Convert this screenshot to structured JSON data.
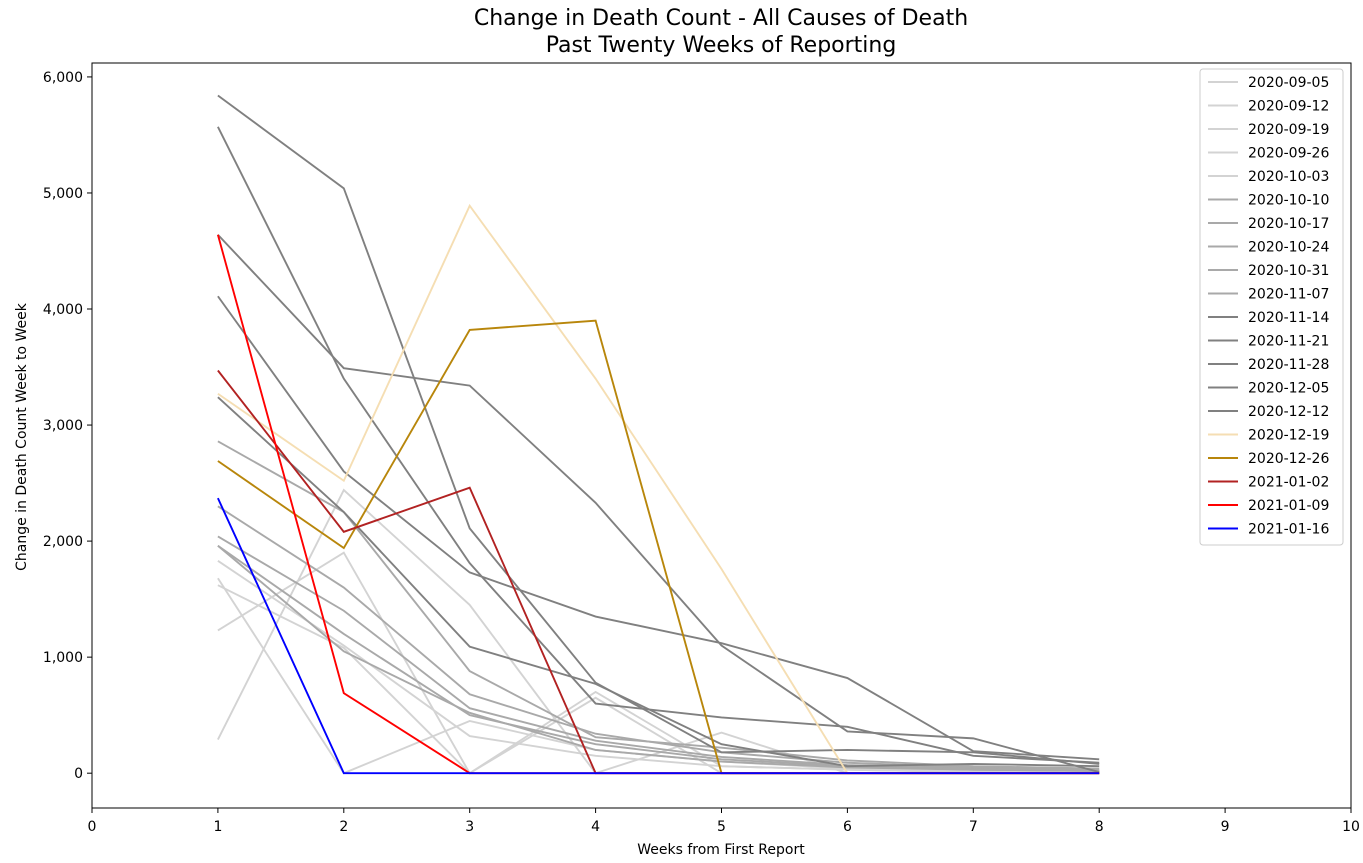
{
  "chart_data": {
    "type": "line",
    "title": "Change in Death Count - All Causes of Death",
    "subtitle": "Past Twenty Weeks of Reporting",
    "xlabel": "Weeks from First Report",
    "ylabel": "Change in Death Count Week to Week",
    "xlim": [
      0,
      10
    ],
    "ylim": [
      -300,
      6120
    ],
    "xticks": [
      0,
      1,
      2,
      3,
      4,
      5,
      6,
      7,
      8,
      9,
      10
    ],
    "yticks": [
      0,
      1000,
      2000,
      3000,
      4000,
      5000,
      6000
    ],
    "ytick_labels": [
      "0",
      "1,000",
      "2,000",
      "3,000",
      "4,000",
      "5,000",
      "6,000"
    ],
    "grid": false,
    "legend_position": "top-right",
    "x": [
      1,
      2,
      3,
      4,
      5,
      6,
      7,
      8
    ],
    "series": [
      {
        "name": "2020-09-05",
        "color": "#d3d3d3",
        "values": [
          290,
          2440,
          1450,
          0,
          350,
          0,
          0,
          0
        ]
      },
      {
        "name": "2020-09-12",
        "color": "#d3d3d3",
        "values": [
          1620,
          1080,
          0,
          650,
          0,
          0,
          0,
          0
        ]
      },
      {
        "name": "2020-09-19",
        "color": "#d3d3d3",
        "values": [
          1830,
          1100,
          320,
          150,
          60,
          30,
          10,
          0
        ]
      },
      {
        "name": "2020-09-26",
        "color": "#d3d3d3",
        "values": [
          1680,
          0,
          450,
          200,
          100,
          40,
          20,
          10
        ]
      },
      {
        "name": "2020-10-03",
        "color": "#d3d3d3",
        "values": [
          1230,
          1900,
          0,
          700,
          60,
          30,
          10,
          0
        ]
      },
      {
        "name": "2020-10-10",
        "color": "#a9a9a9",
        "values": [
          1960,
          1200,
          500,
          250,
          120,
          60,
          30,
          20
        ]
      },
      {
        "name": "2020-10-17",
        "color": "#a9a9a9",
        "values": [
          2040,
          1400,
          560,
          280,
          140,
          70,
          40,
          20
        ]
      },
      {
        "name": "2020-10-24",
        "color": "#a9a9a9",
        "values": [
          2300,
          1600,
          680,
          340,
          180,
          90,
          50,
          30
        ]
      },
      {
        "name": "2020-10-31",
        "color": "#a9a9a9",
        "values": [
          2860,
          2250,
          880,
          310,
          220,
          110,
          60,
          40
        ]
      },
      {
        "name": "2020-11-07",
        "color": "#a9a9a9",
        "values": [
          1960,
          1050,
          520,
          200,
          100,
          50,
          30,
          20
        ]
      },
      {
        "name": "2020-11-14",
        "color": "#808080",
        "values": [
          3240,
          2250,
          1090,
          770,
          250,
          60,
          80,
          60
        ]
      },
      {
        "name": "2020-11-21",
        "color": "#808080",
        "values": [
          4110,
          2600,
          1730,
          1350,
          1120,
          820,
          190,
          120
        ]
      },
      {
        "name": "2020-11-28",
        "color": "#808080",
        "values": [
          4640,
          3490,
          3340,
          2330,
          1100,
          360,
          300,
          10
        ]
      },
      {
        "name": "2020-12-05",
        "color": "#808080",
        "values": [
          5570,
          3400,
          1810,
          600,
          480,
          400,
          150,
          90
        ]
      },
      {
        "name": "2020-12-12",
        "color": "#808080",
        "values": [
          5840,
          5040,
          2110,
          780,
          180,
          200,
          180,
          80
        ]
      },
      {
        "name": "2020-12-19",
        "color": "#f5deb3",
        "values": [
          3270,
          2520,
          4890,
          3400,
          1760,
          0,
          0,
          0
        ]
      },
      {
        "name": "2020-12-26",
        "color": "#b8860b",
        "values": [
          2690,
          1940,
          3820,
          3900,
          0,
          0,
          0,
          0
        ]
      },
      {
        "name": "2021-01-02",
        "color": "#b22222",
        "values": [
          3470,
          2080,
          2460,
          0,
          0,
          0,
          0,
          0
        ]
      },
      {
        "name": "2021-01-09",
        "color": "#ff0000",
        "values": [
          4640,
          690,
          0,
          0,
          0,
          0,
          0,
          0
        ]
      },
      {
        "name": "2021-01-16",
        "color": "#0000ff",
        "values": [
          2370,
          0,
          0,
          0,
          0,
          0,
          0,
          0
        ]
      }
    ]
  }
}
